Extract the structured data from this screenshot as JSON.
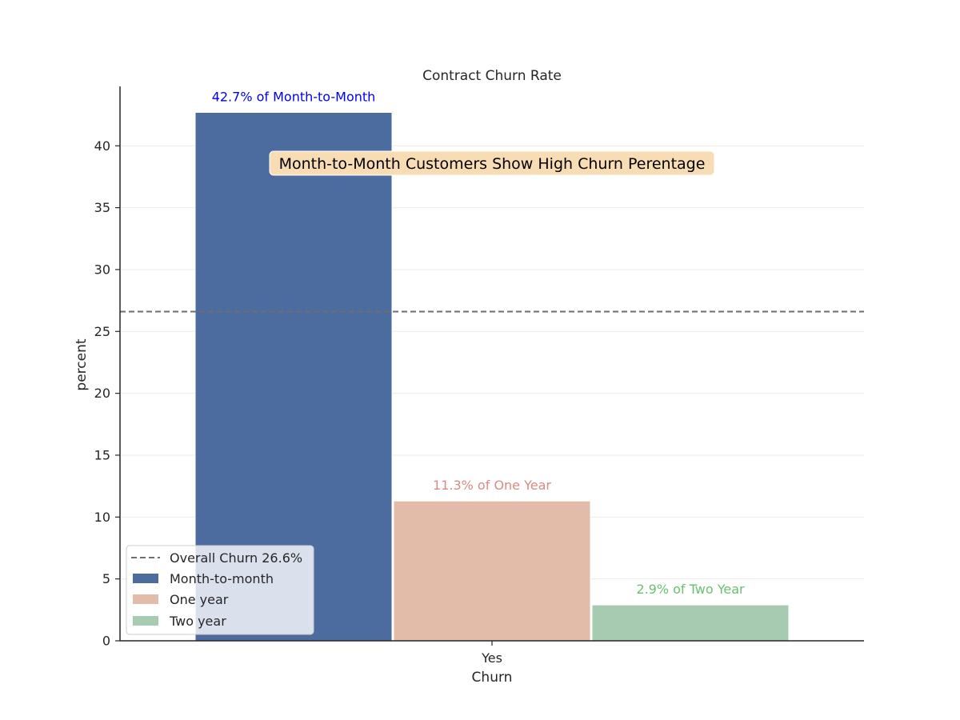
{
  "chart_data": {
    "type": "bar",
    "title": "Contract Churn Rate",
    "xlabel": "Churn",
    "ylabel": "percent",
    "categories": [
      "Yes"
    ],
    "ylim": [
      0,
      44.8
    ],
    "yticks": [
      0,
      5,
      10,
      15,
      20,
      25,
      30,
      35,
      40
    ],
    "grid": "y",
    "series": [
      {
        "name": "Month-to-month",
        "values": [
          42.7
        ],
        "color": "#4c6ca0",
        "label": "42.7% of Month-to-Month",
        "label_color": "#0000ee"
      },
      {
        "name": "One year",
        "values": [
          11.3
        ],
        "color": "#e2bca8",
        "label": "11.3% of One Year",
        "label_color": "#d98a86"
      },
      {
        "name": "Two year",
        "values": [
          2.9
        ],
        "color": "#a7cbb0",
        "label": "2.9% of Two Year",
        "label_color": "#6cbf73"
      }
    ],
    "reference_line": {
      "value": 26.6,
      "label": "Overall Churn 26.6%",
      "color": "#6e6e6e",
      "style": "dashed"
    },
    "annotation": {
      "text": "Month-to-Month Customers Show High Churn Perentage",
      "bg": "#f7dcb4",
      "y": 38.4
    },
    "legend": {
      "placement": "lower-left"
    }
  }
}
